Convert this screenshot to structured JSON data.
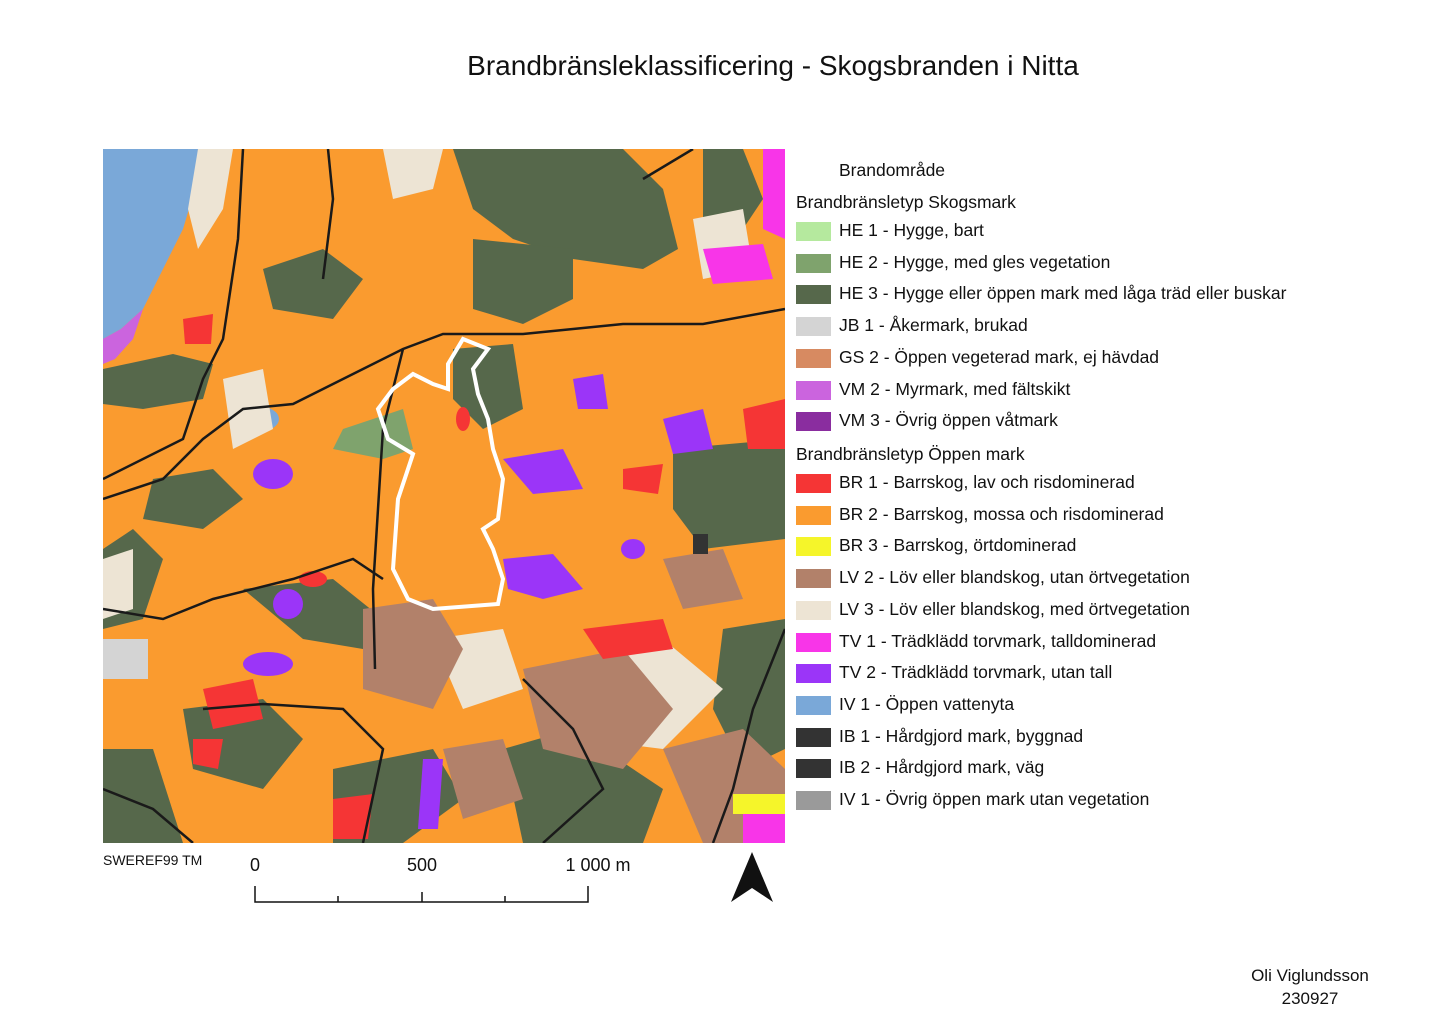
{
  "title": "Brandbränsleklassificering - Skogsbranden i Nitta",
  "legend": {
    "fire_area_label": "Brandområde",
    "group_forest": "Brandbränsletyp Skogsmark",
    "items_forest": [
      {
        "label": "HE 1 - Hygge, bart",
        "color": "#b5e99e"
      },
      {
        "label": "HE 2 - Hygge, med gles vegetation",
        "color": "#7fa36d"
      },
      {
        "label": "HE 3 - Hygge eller öppen mark med låga träd eller buskar",
        "color": "#56684b"
      },
      {
        "label": "JB 1 - Åkermark, brukad",
        "color": "#d4d4d4"
      },
      {
        "label": "GS 2 - Öppen vegeterad mark, ej hävdad",
        "color": "#d78a61"
      },
      {
        "label": "VM 2 - Myrmark, med fältskikt",
        "color": "#cb64de"
      },
      {
        "label": "VM 3 - Övrig öppen våtmark",
        "color": "#8a2d9f"
      }
    ],
    "group_open": "Brandbränsletyp Öppen mark",
    "items_open": [
      {
        "label": "BR 1 - Barrskog, lav och risdominerad",
        "color": "#f53535"
      },
      {
        "label": "BR 2 - Barrskog, mossa och risdominerad",
        "color": "#fa9b2f"
      },
      {
        "label": "BR 3 - Barrskog, örtdominerad",
        "color": "#f5f52a"
      },
      {
        "label": "LV 2 - Löv eller blandskog, utan örtvegetation",
        "color": "#b2816a"
      },
      {
        "label": "LV 3 - Löv eller blandskog, med örtvegetation",
        "color": "#ede4d4"
      },
      {
        "label": "TV 1 - Trädklädd torvmark, talldominerad",
        "color": "#f835e8"
      },
      {
        "label": "TV 2 - Trädklädd torvmark, utan tall",
        "color": "#9b35f8"
      },
      {
        "label": "IV 1 - Öppen vattenyta",
        "color": "#7aa8d8"
      },
      {
        "label": "IB 1 - Hårdgjord mark, byggnad",
        "color": "#333333"
      },
      {
        "label": "IB 2 - Hårdgjord mark, väg",
        "color": "#333333"
      },
      {
        "label": "IV 1 - Övrig öppen mark utan vegetation",
        "color": "#9a9a9a"
      }
    ]
  },
  "crs": "SWEREF99 TM",
  "scale": {
    "labels": [
      "0",
      "500",
      "1 000 m"
    ]
  },
  "author": {
    "name": "Oli Viglundsson",
    "date": "230927"
  }
}
